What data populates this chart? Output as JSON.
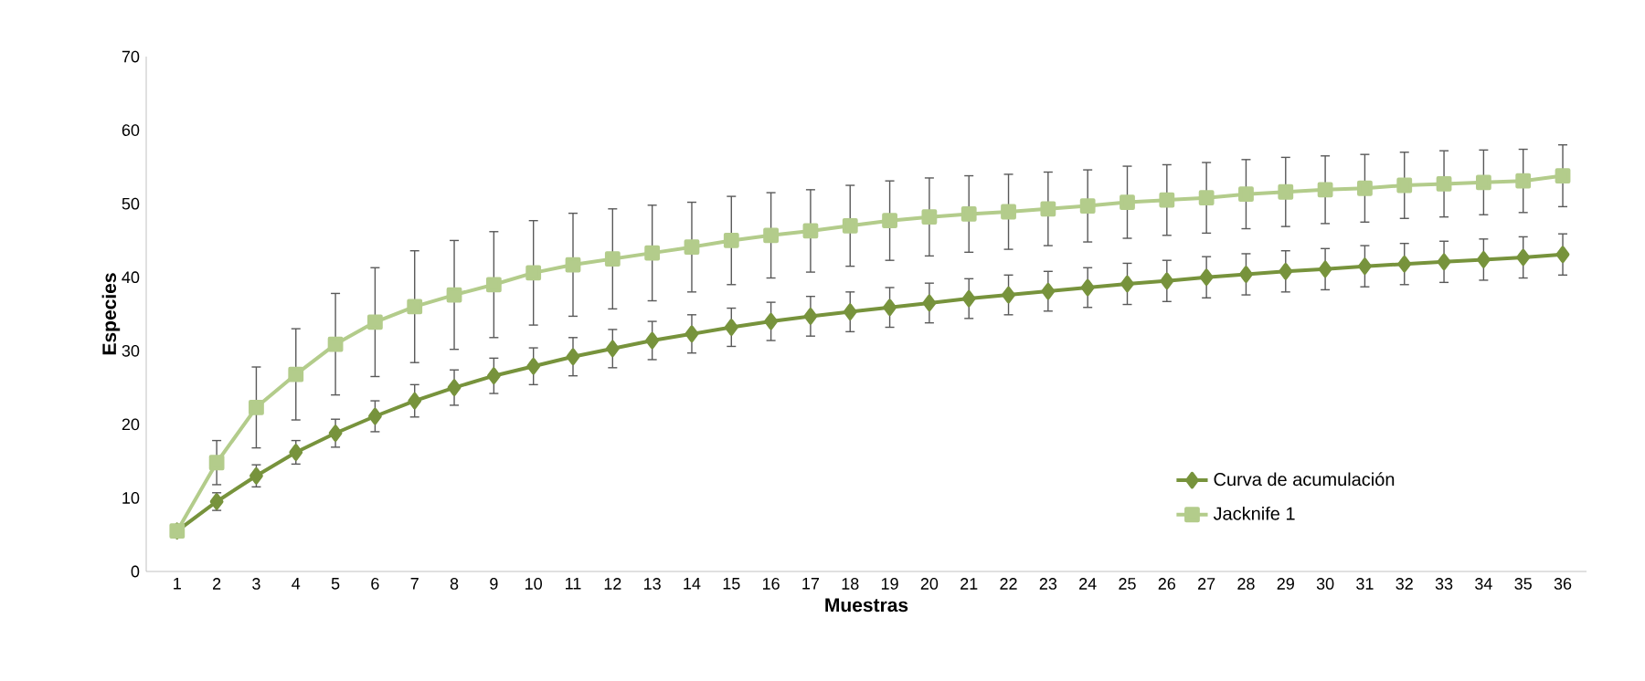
{
  "chart_data": {
    "type": "line",
    "xlabel": "Muestras",
    "ylabel": "Especies",
    "categories": [
      "1",
      "2",
      "3",
      "4",
      "5",
      "6",
      "7",
      "8",
      "9",
      "10",
      "11",
      "12",
      "13",
      "14",
      "15",
      "16",
      "17",
      "18",
      "19",
      "20",
      "21",
      "22",
      "23",
      "24",
      "25",
      "26",
      "27",
      "28",
      "29",
      "30",
      "31",
      "32",
      "33",
      "34",
      "35",
      "36"
    ],
    "series": [
      {
        "name": "Curva de acumulación",
        "color": "#77933c",
        "marker": "diamond",
        "values": [
          5.5,
          9.5,
          13,
          16.2,
          18.8,
          21.1,
          23.2,
          25,
          26.6,
          27.9,
          29.2,
          30.3,
          31.4,
          32.3,
          33.2,
          34,
          34.7,
          35.3,
          35.9,
          36.5,
          37.1,
          37.6,
          38.1,
          38.6,
          39.1,
          39.5,
          40,
          40.4,
          40.8,
          41.1,
          41.5,
          41.8,
          42.1,
          42.4,
          42.7,
          43.1
        ],
        "errors": [
          null,
          1.2,
          1.5,
          1.6,
          1.9,
          2.1,
          2.2,
          2.4,
          2.4,
          2.5,
          2.6,
          2.6,
          2.6,
          2.6,
          2.6,
          2.6,
          2.7,
          2.7,
          2.7,
          2.7,
          2.7,
          2.7,
          2.7,
          2.7,
          2.8,
          2.8,
          2.8,
          2.8,
          2.8,
          2.8,
          2.8,
          2.8,
          2.8,
          2.8,
          2.8,
          2.8
        ]
      },
      {
        "name": "Jacknife 1",
        "color": "#b3cc8b",
        "marker": "square",
        "values": [
          5.5,
          14.8,
          22.3,
          26.8,
          30.9,
          33.9,
          36,
          37.6,
          39,
          40.6,
          41.7,
          42.5,
          43.3,
          44.1,
          45,
          45.7,
          46.3,
          47,
          47.7,
          48.2,
          48.6,
          48.9,
          49.3,
          49.7,
          50.2,
          50.5,
          50.8,
          51.3,
          51.6,
          51.9,
          52.1,
          52.5,
          52.7,
          52.9,
          53.1,
          53.8
        ],
        "errors": [
          null,
          3,
          5.5,
          6.2,
          6.9,
          7.4,
          7.6,
          7.4,
          7.2,
          7.1,
          7,
          6.8,
          6.5,
          6.1,
          6,
          5.8,
          5.6,
          5.5,
          5.4,
          5.3,
          5.2,
          5.1,
          5,
          4.9,
          4.9,
          4.8,
          4.8,
          4.7,
          4.7,
          4.6,
          4.6,
          4.5,
          4.5,
          4.4,
          4.3,
          4.2
        ]
      }
    ],
    "ylim": [
      0,
      70
    ],
    "yticks": [
      0,
      10,
      20,
      30,
      40,
      50,
      60,
      70
    ],
    "legend": "bottom right",
    "grid": false,
    "line_style": "solid"
  }
}
